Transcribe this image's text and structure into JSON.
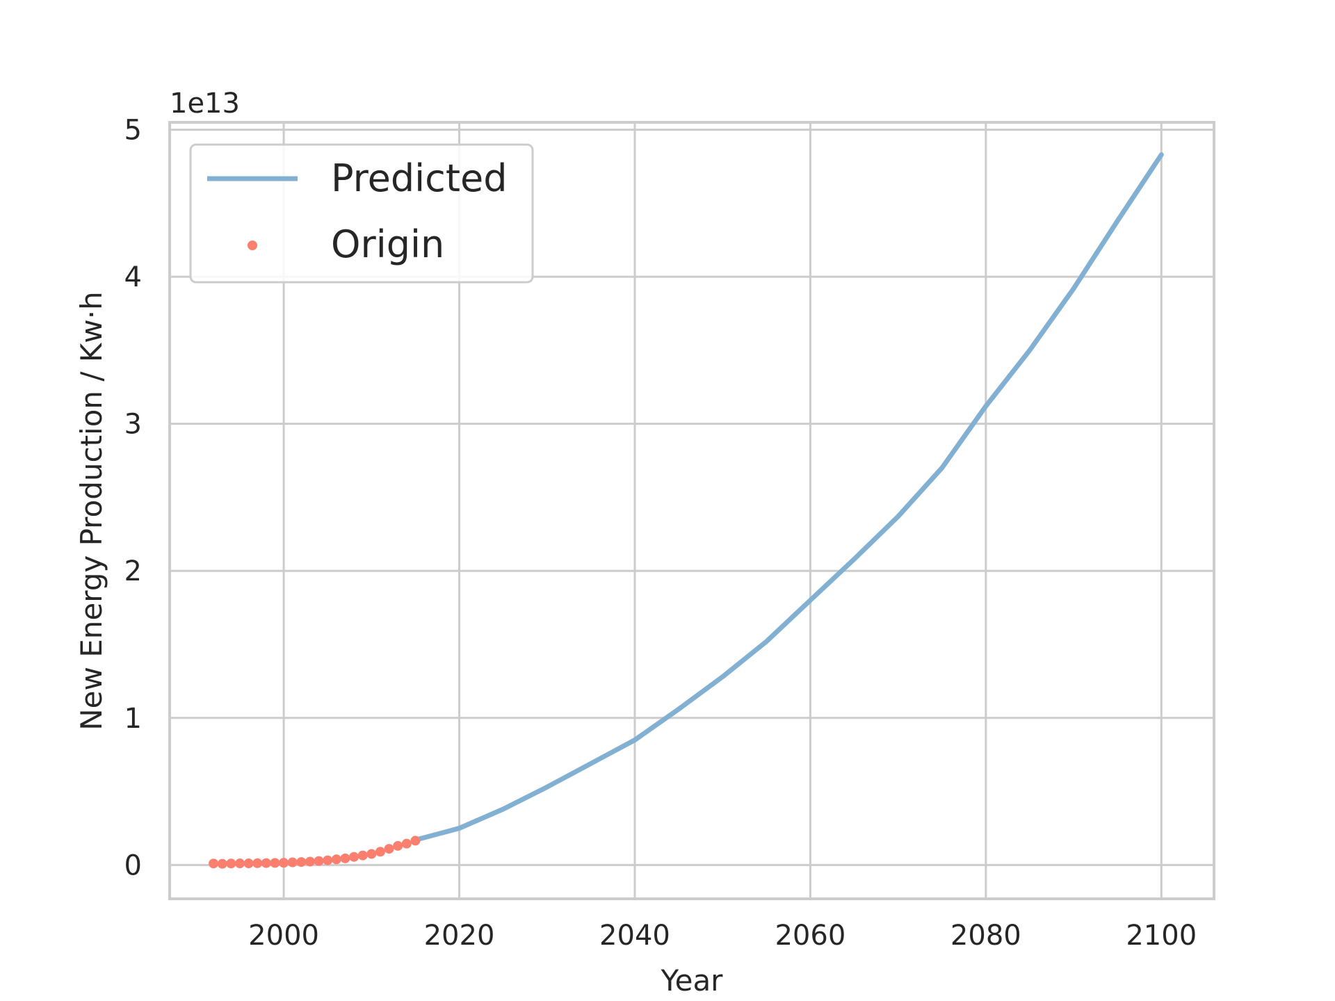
{
  "chart_data": {
    "type": "line",
    "title": "",
    "xlabel": "Year",
    "ylabel": "New Energy Production / Kw·h",
    "offset_text": "1e13",
    "xlim": [
      1987,
      2106
    ],
    "ylim": [
      -2300000000000.0,
      50500000000000.0
    ],
    "xticks": [
      2000,
      2020,
      2040,
      2060,
      2080,
      2100
    ],
    "xtick_labels": [
      "2000",
      "2020",
      "2040",
      "2060",
      "2080",
      "2100"
    ],
    "yticks": [
      0,
      10000000000000.0,
      20000000000000.0,
      30000000000000.0,
      40000000000000.0,
      50000000000000.0
    ],
    "ytick_labels": [
      "0",
      "1",
      "2",
      "3",
      "4",
      "5"
    ],
    "grid": true,
    "legend_position": "top-left",
    "series": [
      {
        "name": "Predicted",
        "kind": "line",
        "color": "#82b0d2",
        "x": [
          2015,
          2020,
          2025,
          2030,
          2035,
          2040,
          2045,
          2050,
          2055,
          2060,
          2065,
          2070,
          2075,
          2080,
          2085,
          2090,
          2095,
          2100
        ],
        "y": [
          1700000000000.0,
          2500000000000.0,
          3800000000000.0,
          5300000000000.0,
          6900000000000.0,
          8500000000000.0,
          10600000000000.0,
          12800000000000.0,
          15200000000000.0,
          18000000000000.0,
          20800000000000.0,
          23700000000000.0,
          27000000000000.0,
          31200000000000.0,
          35000000000000.0,
          39200000000000.0,
          43800000000000.0,
          48300000000000.0
        ]
      },
      {
        "name": "Origin",
        "kind": "scatter",
        "color": "#fa7f6f",
        "x": [
          1992,
          1993,
          1994,
          1995,
          1996,
          1997,
          1998,
          1999,
          2000,
          2001,
          2002,
          2003,
          2004,
          2005,
          2006,
          2007,
          2008,
          2009,
          2010,
          2011,
          2012,
          2013,
          2014,
          2015
        ],
        "y": [
          100000000000.0,
          80000000000.0,
          100000000000.0,
          110000000000.0,
          110000000000.0,
          120000000000.0,
          130000000000.0,
          140000000000.0,
          150000000000.0,
          180000000000.0,
          200000000000.0,
          230000000000.0,
          270000000000.0,
          320000000000.0,
          380000000000.0,
          450000000000.0,
          550000000000.0,
          650000000000.0,
          750000000000.0,
          900000000000.0,
          1100000000000.0,
          1300000000000.0,
          1450000000000.0,
          1650000000000.0
        ]
      }
    ]
  }
}
